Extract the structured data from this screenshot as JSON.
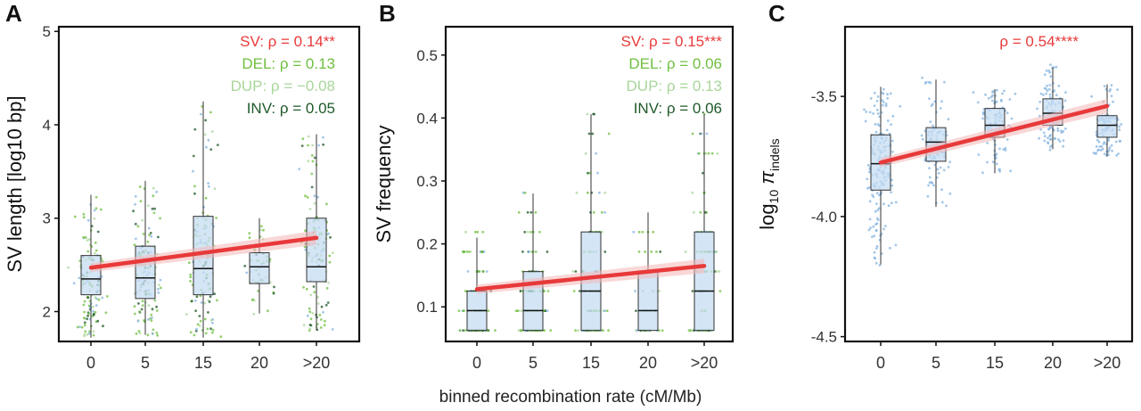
{
  "figure": {
    "shared_xlabel": "binned recombination rate (cM/Mb)"
  },
  "colors": {
    "SV": "#e8393a",
    "DEL": "#6fbf3f",
    "DUP": "#a9d69a",
    "INV": "#1f5a2a",
    "box_fill": "#c5dcf2",
    "points_pi": "#86b4e0",
    "fit_band": "#f4b6b6"
  },
  "chart_data": [
    {
      "panel": "A",
      "type": "boxplot",
      "categories": [
        "0",
        "5",
        "15",
        "20",
        ">20"
      ],
      "ylabel": "SV length [log10 bp]",
      "ylim": [
        1.68,
        5.05
      ],
      "yticks": [
        2,
        3,
        4,
        5
      ],
      "boxes": [
        {
          "category": "0",
          "q1": 2.18,
          "median": 2.35,
          "q3": 2.6,
          "wlo": 1.72,
          "whi": 3.25
        },
        {
          "category": "5",
          "q1": 2.14,
          "median": 2.36,
          "q3": 2.7,
          "wlo": 1.75,
          "whi": 3.4
        },
        {
          "category": "15",
          "q1": 2.18,
          "median": 2.46,
          "q3": 3.02,
          "wlo": 1.72,
          "whi": 4.25
        },
        {
          "category": "20",
          "q1": 2.3,
          "median": 2.48,
          "q3": 2.63,
          "wlo": 1.98,
          "whi": 3.0
        },
        {
          "category": ">20",
          "q1": 2.32,
          "median": 2.48,
          "q3": 3.0,
          "wlo": 1.8,
          "whi": 3.9
        }
      ],
      "fit": {
        "y_start": 2.47,
        "y_end": 2.79
      },
      "annotations": [
        {
          "key": "SV",
          "text": "SV: ρ = 0.14**"
        },
        {
          "key": "DEL",
          "text": "DEL: ρ = 0.13"
        },
        {
          "key": "DUP",
          "text": "DUP: ρ = −0.08"
        },
        {
          "key": "INV",
          "text": "INV: ρ = 0.05"
        }
      ]
    },
    {
      "panel": "B",
      "type": "boxplot",
      "categories": [
        "0",
        "5",
        "15",
        "20",
        ">20"
      ],
      "ylabel": "SV frequency",
      "ylim": [
        0.045,
        0.545
      ],
      "yticks": [
        0.1,
        0.2,
        0.3,
        0.4,
        0.5
      ],
      "yticklabels": [
        "0.1",
        "0.2",
        "0.3",
        "0.4",
        "0.5"
      ],
      "boxes": [
        {
          "category": "0",
          "q1": 0.0625,
          "median": 0.094,
          "q3": 0.125,
          "wlo": 0.0625,
          "whi": 0.21
        },
        {
          "category": "5",
          "q1": 0.0625,
          "median": 0.094,
          "q3": 0.156,
          "wlo": 0.0625,
          "whi": 0.28
        },
        {
          "category": "15",
          "q1": 0.0625,
          "median": 0.125,
          "q3": 0.219,
          "wlo": 0.0625,
          "whi": 0.406
        },
        {
          "category": "20",
          "q1": 0.0625,
          "median": 0.094,
          "q3": 0.156,
          "wlo": 0.0625,
          "whi": 0.25
        },
        {
          "category": ">20",
          "q1": 0.0625,
          "median": 0.125,
          "q3": 0.219,
          "wlo": 0.0625,
          "whi": 0.406
        }
      ],
      "fit": {
        "y_start": 0.128,
        "y_end": 0.165
      },
      "annotations": [
        {
          "key": "SV",
          "text": "SV: ρ = 0.15***"
        },
        {
          "key": "DEL",
          "text": "DEL: ρ = 0.06"
        },
        {
          "key": "DUP",
          "text": "DUP: ρ = 0.13"
        },
        {
          "key": "INV",
          "text": "INV: ρ = 0.06"
        }
      ]
    },
    {
      "panel": "C",
      "type": "boxplot",
      "categories": [
        "0",
        "5",
        "15",
        "20",
        ">20"
      ],
      "ylabel": "log10 π indels",
      "ylim": [
        -4.52,
        -3.21
      ],
      "yticks": [
        -4.5,
        -4.0,
        -3.5
      ],
      "yticklabels": [
        "-4.5",
        "-4.0",
        "-3.5"
      ],
      "boxes": [
        {
          "category": "0",
          "q1": -3.89,
          "median": -3.78,
          "q3": -3.66,
          "wlo": -4.2,
          "whi": -3.46
        },
        {
          "category": "5",
          "q1": -3.77,
          "median": -3.69,
          "q3": -3.63,
          "wlo": -3.96,
          "whi": -3.43
        },
        {
          "category": "15",
          "q1": -3.67,
          "median": -3.62,
          "q3": -3.55,
          "wlo": -3.82,
          "whi": -3.47
        },
        {
          "category": "20",
          "q1": -3.62,
          "median": -3.57,
          "q3": -3.51,
          "wlo": -3.72,
          "whi": -3.38
        },
        {
          "category": ">20",
          "q1": -3.67,
          "median": -3.62,
          "q3": -3.58,
          "wlo": -3.75,
          "whi": -3.45
        }
      ],
      "fit": {
        "y_start": -3.775,
        "y_end": -3.54
      },
      "annotations": [
        {
          "key": "SV",
          "text": "ρ = 0.54****"
        }
      ]
    }
  ]
}
